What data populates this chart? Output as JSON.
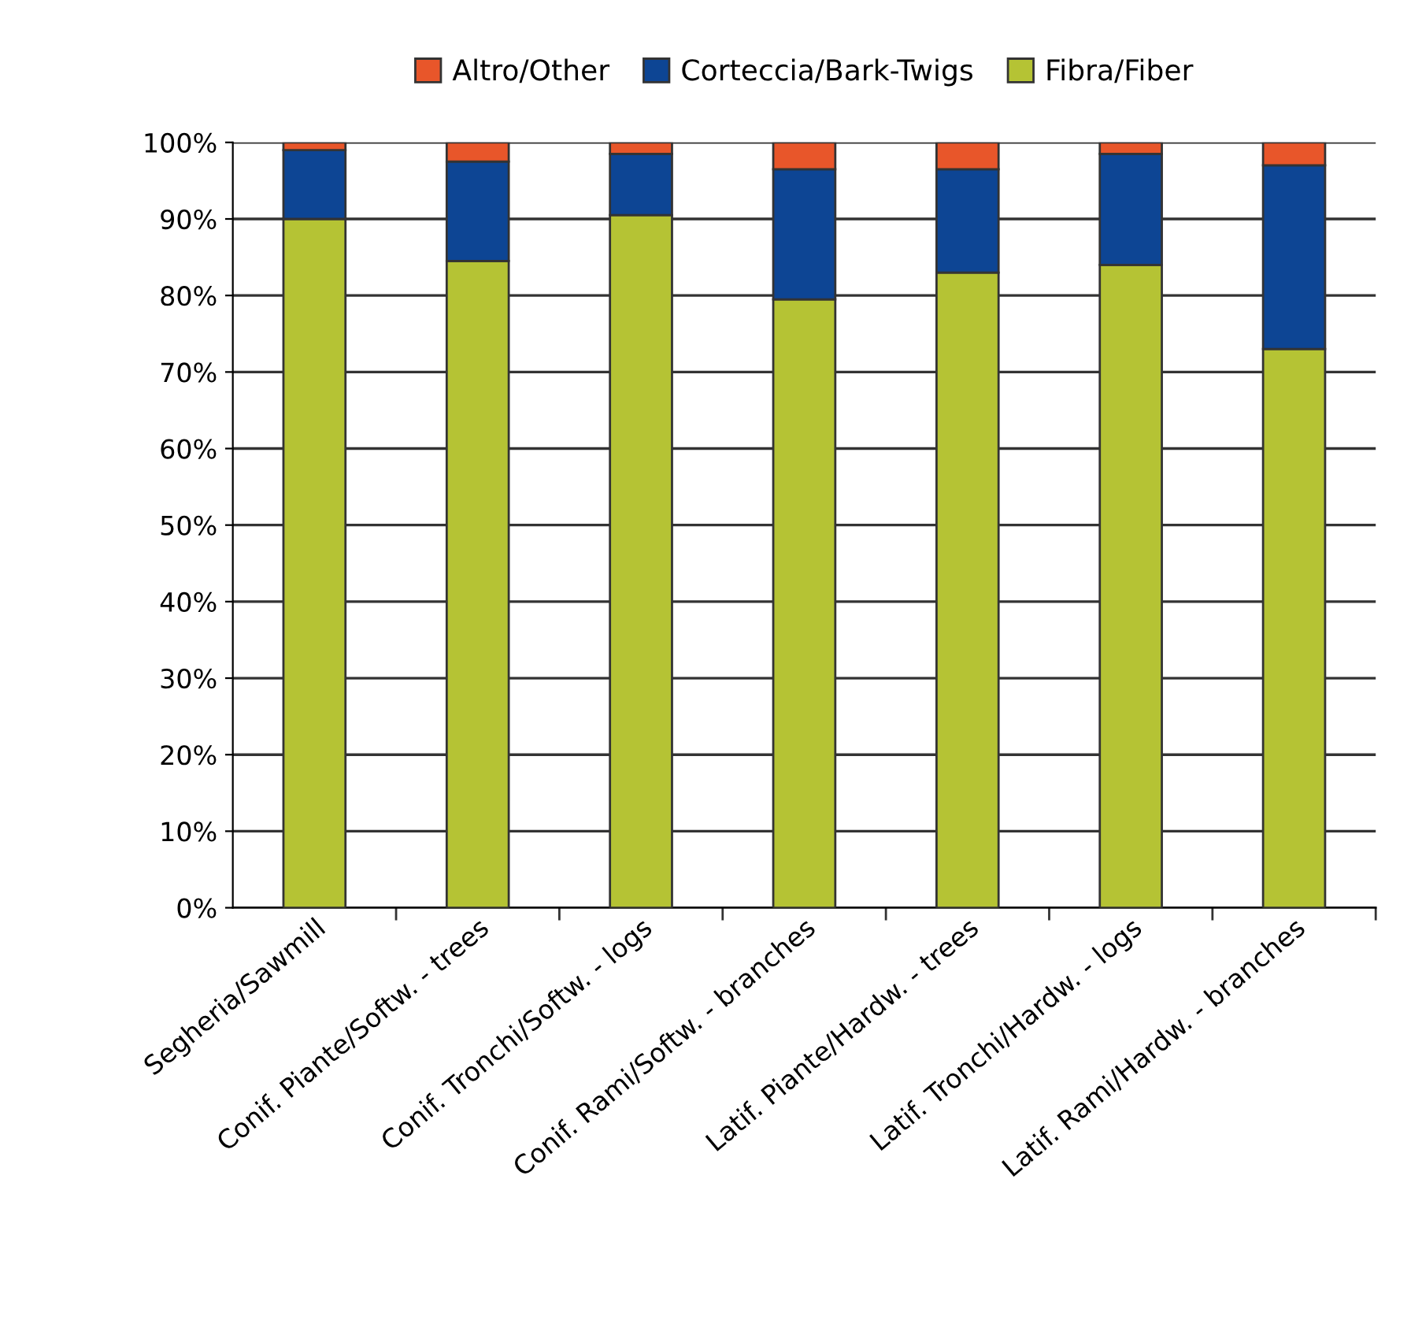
{
  "chart_data": {
    "type": "bar",
    "stacked": true,
    "categories": [
      "Segheria/Sawmill",
      "Conif. Piante/Softw. - trees",
      "Conif. Tronchi/Softw. - logs",
      "Conif. Rami/Softw. - branches",
      "Latif. Piante/Hardw. - trees",
      "Latif. Tronchi/Hardw. - logs",
      "Latif. Rami/Hardw. - branches"
    ],
    "series": [
      {
        "name": "Fibra/Fiber",
        "color": "#b5c334",
        "values": [
          90,
          84.5,
          90.5,
          79.5,
          83,
          84,
          73
        ]
      },
      {
        "name": "Corteccia/Bark-Twigs",
        "color": "#0d4594",
        "values": [
          9,
          13,
          8,
          17,
          13.5,
          14.5,
          24
        ]
      },
      {
        "name": "Altro/Other",
        "color": "#e8562a",
        "values": [
          1,
          2.5,
          1.5,
          3.5,
          3.5,
          1.5,
          3
        ]
      }
    ],
    "ylim": [
      0,
      100
    ],
    "yticks": [
      {
        "value": 0,
        "label": "0%"
      },
      {
        "value": 10,
        "label": "10%"
      },
      {
        "value": 20,
        "label": "20%"
      },
      {
        "value": 30,
        "label": "30%"
      },
      {
        "value": 40,
        "label": "40%"
      },
      {
        "value": 50,
        "label": "50%"
      },
      {
        "value": 60,
        "label": "60%"
      },
      {
        "value": 70,
        "label": "70%"
      },
      {
        "value": 80,
        "label": "80%"
      },
      {
        "value": 90,
        "label": "90%"
      },
      {
        "value": 100,
        "label": "100%"
      }
    ],
    "grid": "y",
    "legend": "top"
  }
}
